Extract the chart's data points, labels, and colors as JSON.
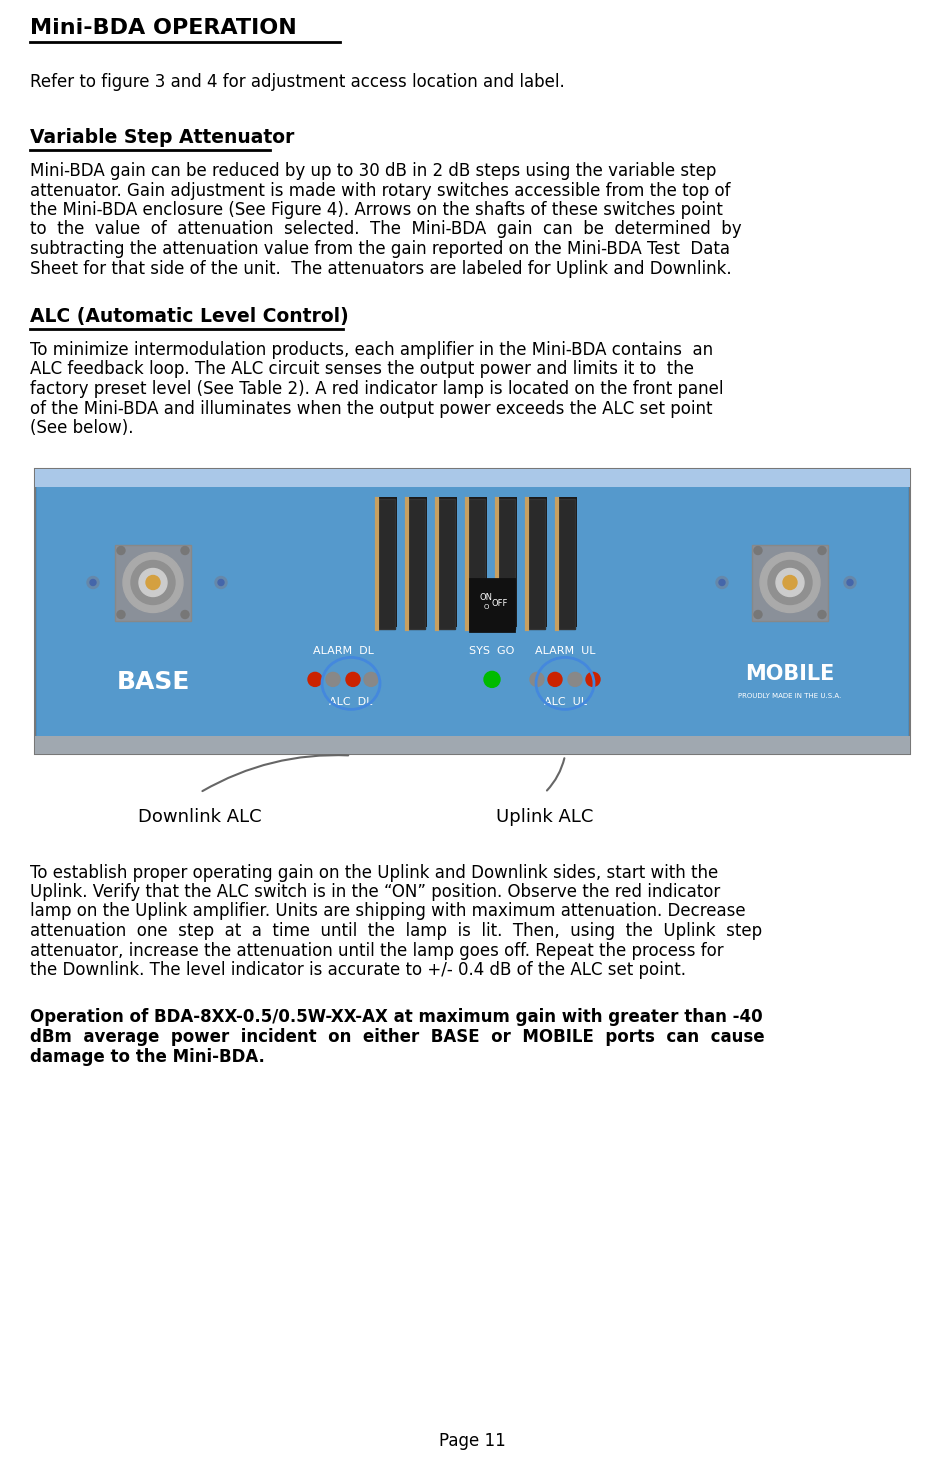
{
  "title": "Mini-BDA OPERATION",
  "subtitle": "Refer to figure 3 and 4 for adjustment access location and label.",
  "section1_title": "Variable Step Attenuator",
  "section1_body_lines": [
    "Mini-BDA gain can be reduced by up to 30 dB in 2 dB steps using the variable step",
    "attenuator. Gain adjustment is made with rotary switches accessible from the top of",
    "the Mini-BDA enclosure (See Figure 4). Arrows on the shafts of these switches point",
    "to  the  value  of  attenuation  selected.  The  Mini-BDA  gain  can  be  determined  by",
    "subtracting the attenuation value from the gain reported on the Mini-BDA Test  Data",
    "Sheet for that side of the unit.  The attenuators are labeled for Uplink and Downlink."
  ],
  "section2_title": "ALC (Automatic Level Control)",
  "section2_body_lines": [
    "To minimize intermodulation products, each amplifier in the Mini-BDA contains  an",
    "ALC feedback loop. The ALC circuit senses the output power and limits it to  the",
    "factory preset level (See Table 2). A red indicator lamp is located on the front panel",
    "of the Mini-BDA and illuminates when the output power exceeds the ALC set point",
    "(See below)."
  ],
  "label_downlink": "Downlink ALC",
  "label_uplink": "Uplink ALC",
  "section3_body_lines": [
    "To establish proper operating gain on the Uplink and Downlink sides, start with the",
    "Uplink. Verify that the ALC switch is in the “ON” position. Observe the red indicator",
    "lamp on the Uplink amplifier. Units are shipping with maximum attenuation. Decrease",
    "attenuation  one  step  at  a  time  until  the  lamp  is  lit.  Then,  using  the  Uplink  step",
    "attenuator, increase the attenuation until the lamp goes off. Repeat the process for",
    "the Downlink. The level indicator is accurate to +/- 0.4 dB of the ALC set point."
  ],
  "warning_lines": [
    "Operation of BDA-8XX-0.5/0.5W-XX-AX at maximum gain with greater than -40",
    "dBm  average  power  incident  on  either  BASE  or  MOBILE  ports  can  cause",
    "damage to the Mini-BDA."
  ],
  "page_number": "Page 11",
  "bg_color": "#ffffff",
  "text_color": "#000000",
  "device_blue": "#4a8fc4",
  "device_blue_dark": "#3a7aaa",
  "device_blue_light": "#6aafde"
}
